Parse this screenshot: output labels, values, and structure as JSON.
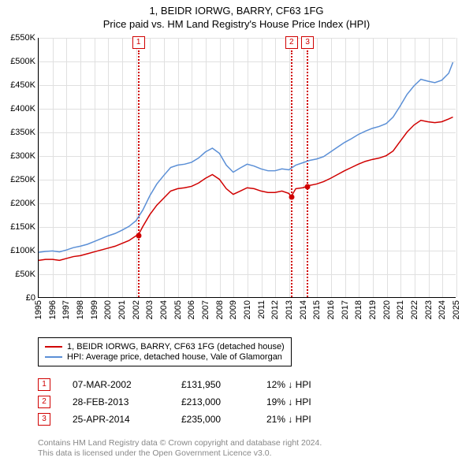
{
  "title_line1": "1, BEIDR IORWG, BARRY, CF63 1FG",
  "title_line2": "Price paid vs. HM Land Registry's House Price Index (HPI)",
  "chart": {
    "type": "line",
    "background_color": "#ffffff",
    "grid_color": "#e0e0e0",
    "axis_color": "#000000",
    "x_years": [
      1995,
      1996,
      1997,
      1998,
      1999,
      2000,
      2001,
      2002,
      2003,
      2004,
      2005,
      2006,
      2007,
      2008,
      2009,
      2010,
      2011,
      2012,
      2013,
      2014,
      2015,
      2016,
      2017,
      2018,
      2019,
      2020,
      2021,
      2022,
      2023,
      2024,
      2025
    ],
    "xlim": [
      1995,
      2025
    ],
    "ylim": [
      0,
      550000
    ],
    "ytick_step": 50000,
    "yticks": [
      "£0",
      "£50K",
      "£100K",
      "£150K",
      "£200K",
      "£250K",
      "£300K",
      "£350K",
      "£400K",
      "£450K",
      "£500K",
      "£550K"
    ],
    "label_fontsize": 11,
    "series": [
      {
        "name": "property",
        "label": "1, BEIDR IORWG, BARRY, CF63 1FG (detached house)",
        "color": "#d00000",
        "line_width": 1.5,
        "points": [
          [
            1995,
            78000
          ],
          [
            1995.5,
            80000
          ],
          [
            1996,
            80000
          ],
          [
            1996.5,
            78000
          ],
          [
            1997,
            82000
          ],
          [
            1997.5,
            86000
          ],
          [
            1998,
            88000
          ],
          [
            1998.5,
            92000
          ],
          [
            1999,
            96000
          ],
          [
            1999.5,
            100000
          ],
          [
            2000,
            104000
          ],
          [
            2000.5,
            108000
          ],
          [
            2001,
            114000
          ],
          [
            2001.5,
            120000
          ],
          [
            2002,
            130000
          ],
          [
            2002.17,
            131950
          ],
          [
            2002.5,
            150000
          ],
          [
            2003,
            175000
          ],
          [
            2003.5,
            195000
          ],
          [
            2004,
            210000
          ],
          [
            2004.5,
            225000
          ],
          [
            2005,
            230000
          ],
          [
            2005.5,
            232000
          ],
          [
            2006,
            235000
          ],
          [
            2006.5,
            242000
          ],
          [
            2007,
            252000
          ],
          [
            2007.5,
            260000
          ],
          [
            2008,
            250000
          ],
          [
            2008.5,
            230000
          ],
          [
            2009,
            218000
          ],
          [
            2009.5,
            225000
          ],
          [
            2010,
            232000
          ],
          [
            2010.5,
            230000
          ],
          [
            2011,
            225000
          ],
          [
            2011.5,
            222000
          ],
          [
            2012,
            222000
          ],
          [
            2012.5,
            225000
          ],
          [
            2013,
            220000
          ],
          [
            2013.16,
            213000
          ],
          [
            2013.5,
            230000
          ],
          [
            2014,
            232000
          ],
          [
            2014.31,
            235000
          ],
          [
            2014.5,
            237000
          ],
          [
            2015,
            240000
          ],
          [
            2015.5,
            245000
          ],
          [
            2016,
            252000
          ],
          [
            2016.5,
            260000
          ],
          [
            2017,
            268000
          ],
          [
            2017.5,
            275000
          ],
          [
            2018,
            282000
          ],
          [
            2018.5,
            288000
          ],
          [
            2019,
            292000
          ],
          [
            2019.5,
            295000
          ],
          [
            2020,
            300000
          ],
          [
            2020.5,
            310000
          ],
          [
            2021,
            330000
          ],
          [
            2021.5,
            350000
          ],
          [
            2022,
            365000
          ],
          [
            2022.5,
            375000
          ],
          [
            2023,
            372000
          ],
          [
            2023.5,
            370000
          ],
          [
            2024,
            372000
          ],
          [
            2024.5,
            378000
          ],
          [
            2024.8,
            382000
          ]
        ]
      },
      {
        "name": "hpi",
        "label": "HPI: Average price, detached house, Vale of Glamorgan",
        "color": "#5b8fd6",
        "line_width": 1.5,
        "points": [
          [
            1995,
            95000
          ],
          [
            1995.5,
            97000
          ],
          [
            1996,
            98000
          ],
          [
            1996.5,
            96000
          ],
          [
            1997,
            100000
          ],
          [
            1997.5,
            105000
          ],
          [
            1998,
            108000
          ],
          [
            1998.5,
            112000
          ],
          [
            1999,
            118000
          ],
          [
            1999.5,
            124000
          ],
          [
            2000,
            130000
          ],
          [
            2000.5,
            135000
          ],
          [
            2001,
            142000
          ],
          [
            2001.5,
            150000
          ],
          [
            2002,
            162000
          ],
          [
            2002.5,
            185000
          ],
          [
            2003,
            215000
          ],
          [
            2003.5,
            240000
          ],
          [
            2004,
            258000
          ],
          [
            2004.5,
            275000
          ],
          [
            2005,
            280000
          ],
          [
            2005.5,
            282000
          ],
          [
            2006,
            286000
          ],
          [
            2006.5,
            295000
          ],
          [
            2007,
            308000
          ],
          [
            2007.5,
            316000
          ],
          [
            2008,
            305000
          ],
          [
            2008.5,
            280000
          ],
          [
            2009,
            265000
          ],
          [
            2009.5,
            274000
          ],
          [
            2010,
            282000
          ],
          [
            2010.5,
            278000
          ],
          [
            2011,
            272000
          ],
          [
            2011.5,
            268000
          ],
          [
            2012,
            268000
          ],
          [
            2012.5,
            272000
          ],
          [
            2013,
            270000
          ],
          [
            2013.5,
            280000
          ],
          [
            2014,
            285000
          ],
          [
            2014.5,
            290000
          ],
          [
            2015,
            293000
          ],
          [
            2015.5,
            298000
          ],
          [
            2016,
            308000
          ],
          [
            2016.5,
            318000
          ],
          [
            2017,
            328000
          ],
          [
            2017.5,
            336000
          ],
          [
            2018,
            345000
          ],
          [
            2018.5,
            352000
          ],
          [
            2019,
            358000
          ],
          [
            2019.5,
            362000
          ],
          [
            2020,
            368000
          ],
          [
            2020.5,
            382000
          ],
          [
            2021,
            405000
          ],
          [
            2021.5,
            430000
          ],
          [
            2022,
            448000
          ],
          [
            2022.5,
            462000
          ],
          [
            2023,
            458000
          ],
          [
            2023.5,
            455000
          ],
          [
            2024,
            460000
          ],
          [
            2024.5,
            475000
          ],
          [
            2024.8,
            498000
          ]
        ]
      }
    ],
    "markers": [
      {
        "num": "1",
        "year": 2002.17,
        "value": 131950
      },
      {
        "num": "2",
        "year": 2013.16,
        "value": 213000
      },
      {
        "num": "3",
        "year": 2014.31,
        "value": 235000
      }
    ]
  },
  "legend": {
    "items": [
      {
        "color": "#d00000",
        "label": "1, BEIDR IORWG, BARRY, CF63 1FG (detached house)"
      },
      {
        "color": "#5b8fd6",
        "label": "HPI: Average price, detached house, Vale of Glamorgan"
      }
    ]
  },
  "transactions": [
    {
      "num": "1",
      "date": "07-MAR-2002",
      "price": "£131,950",
      "pct": "12% ↓ HPI"
    },
    {
      "num": "2",
      "date": "28-FEB-2013",
      "price": "£213,000",
      "pct": "19% ↓ HPI"
    },
    {
      "num": "3",
      "date": "25-APR-2014",
      "price": "£235,000",
      "pct": "21% ↓ HPI"
    }
  ],
  "footer_line1": "Contains HM Land Registry data © Crown copyright and database right 2024.",
  "footer_line2": "This data is licensed under the Open Government Licence v3.0."
}
